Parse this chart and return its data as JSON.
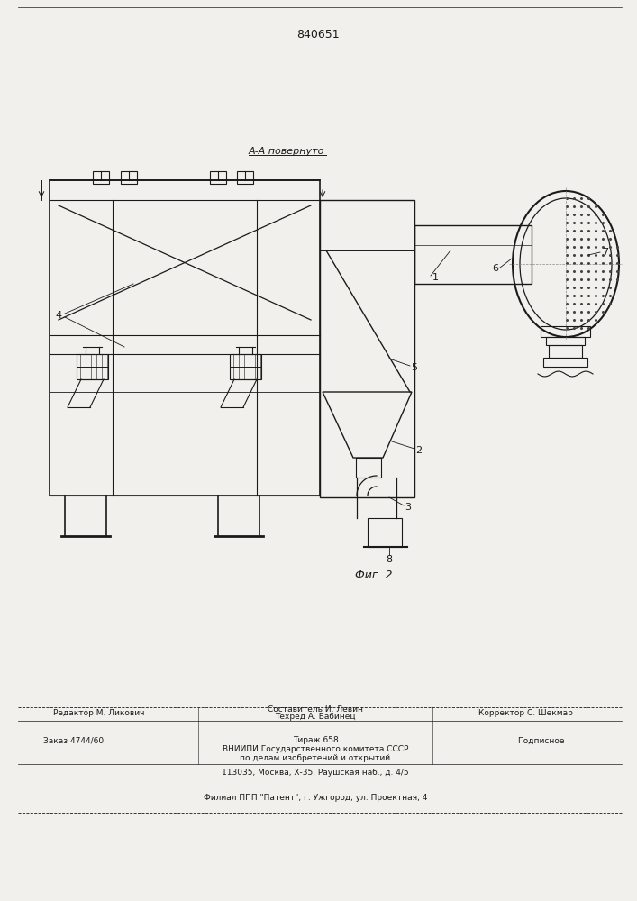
{
  "patent_number": "840651",
  "section_label": "А-А повернуто",
  "fig_label": "Фиг. 2",
  "bg_color": "#f2f0ec",
  "line_color": "#1a1a1a",
  "text_color": "#1a1a1a"
}
